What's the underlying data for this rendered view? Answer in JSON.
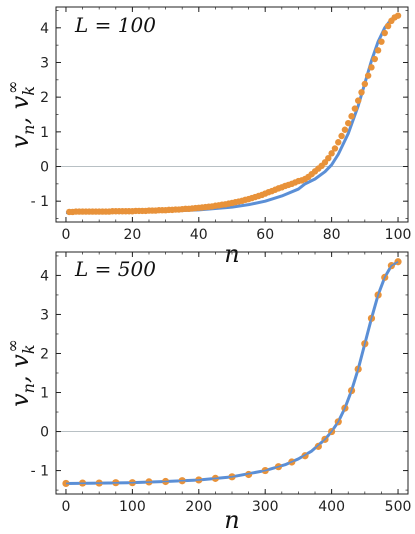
{
  "chart_data": [
    {
      "type": "line",
      "panel_label": "L = 100",
      "xlabel": "n",
      "ylabel": "v_n, v_k^∞",
      "xlim": [
        -3,
        103
      ],
      "ylim": [
        -1.6,
        4.6
      ],
      "xticks": [
        0,
        20,
        40,
        60,
        80,
        100
      ],
      "yticks": [
        -1,
        0,
        1,
        2,
        3,
        4
      ],
      "ytick_labels": [
        "- 1",
        "0",
        "1",
        "2",
        "3",
        "4"
      ],
      "reference_line_y": 0,
      "series": [
        {
          "style": "line",
          "color": "#5b8fd6",
          "x": [
            0,
            10,
            20,
            30,
            40,
            50,
            55,
            60,
            65,
            70,
            72,
            75,
            78,
            80,
            82,
            85,
            88,
            90,
            92,
            94,
            96,
            98,
            100
          ],
          "y": [
            -1.33,
            -1.32,
            -1.31,
            -1.29,
            -1.25,
            -1.17,
            -1.1,
            -1.0,
            -0.85,
            -0.65,
            -0.5,
            -0.36,
            -0.15,
            0.05,
            0.35,
            0.95,
            1.75,
            2.4,
            3.05,
            3.6,
            4.0,
            4.25,
            4.35
          ]
        },
        {
          "style": "markers",
          "color": "#e8923a",
          "x": [
            1,
            2,
            3,
            4,
            5,
            6,
            7,
            8,
            9,
            10,
            11,
            12,
            13,
            14,
            15,
            16,
            17,
            18,
            19,
            20,
            21,
            22,
            23,
            24,
            25,
            26,
            27,
            28,
            29,
            30,
            31,
            32,
            33,
            34,
            35,
            36,
            37,
            38,
            39,
            40,
            41,
            42,
            43,
            44,
            45,
            46,
            47,
            48,
            49,
            50,
            51,
            52,
            53,
            54,
            55,
            56,
            57,
            58,
            59,
            60,
            61,
            62,
            63,
            64,
            65,
            66,
            67,
            68,
            69,
            70,
            71,
            72,
            73,
            74,
            75,
            76,
            77,
            78,
            79,
            80,
            81,
            82,
            83,
            84,
            85,
            86,
            87,
            88,
            89,
            90,
            91,
            92,
            93,
            94,
            95,
            96,
            97,
            98,
            99,
            100
          ],
          "y": [
            -1.31,
            -1.31,
            -1.3,
            -1.3,
            -1.3,
            -1.3,
            -1.3,
            -1.3,
            -1.3,
            -1.3,
            -1.3,
            -1.3,
            -1.3,
            -1.29,
            -1.29,
            -1.29,
            -1.29,
            -1.29,
            -1.29,
            -1.29,
            -1.28,
            -1.28,
            -1.28,
            -1.28,
            -1.27,
            -1.27,
            -1.27,
            -1.26,
            -1.26,
            -1.26,
            -1.25,
            -1.25,
            -1.24,
            -1.24,
            -1.23,
            -1.22,
            -1.22,
            -1.21,
            -1.2,
            -1.19,
            -1.18,
            -1.17,
            -1.16,
            -1.15,
            -1.13,
            -1.12,
            -1.1,
            -1.09,
            -1.07,
            -1.05,
            -1.03,
            -1.01,
            -0.99,
            -0.96,
            -0.94,
            -0.91,
            -0.88,
            -0.85,
            -0.82,
            -0.78,
            -0.74,
            -0.71,
            -0.67,
            -0.63,
            -0.6,
            -0.56,
            -0.53,
            -0.5,
            -0.46,
            -0.42,
            -0.4,
            -0.36,
            -0.3,
            -0.22,
            -0.14,
            -0.06,
            0.02,
            0.12,
            0.24,
            0.38,
            0.52,
            0.7,
            0.88,
            1.06,
            1.25,
            1.45,
            1.67,
            1.9,
            2.14,
            2.38,
            2.62,
            2.86,
            3.1,
            3.35,
            3.6,
            3.85,
            4.05,
            4.2,
            4.3,
            4.35
          ]
        }
      ]
    },
    {
      "type": "line",
      "panel_label": "L = 500",
      "xlabel": "n",
      "ylabel": "v_n, v_k^∞",
      "xlim": [
        -15,
        515
      ],
      "ylim": [
        -1.6,
        4.6
      ],
      "xticks": [
        0,
        100,
        200,
        300,
        400,
        500
      ],
      "yticks": [
        -1,
        0,
        1,
        2,
        3,
        4
      ],
      "ytick_labels": [
        "- 1",
        "0",
        "1",
        "2",
        "3",
        "4"
      ],
      "reference_line_y": 0,
      "series": [
        {
          "style": "line",
          "color": "#5b8fd6",
          "x": [
            0,
            50,
            100,
            150,
            200,
            250,
            300,
            330,
            350,
            370,
            390,
            400,
            410,
            420,
            430,
            440,
            450,
            460,
            470,
            480,
            490,
            500
          ],
          "y": [
            -1.33,
            -1.32,
            -1.31,
            -1.28,
            -1.24,
            -1.16,
            -1.0,
            -0.85,
            -0.7,
            -0.5,
            -0.2,
            0.0,
            0.25,
            0.6,
            1.05,
            1.6,
            2.25,
            2.9,
            3.5,
            3.95,
            4.25,
            4.35
          ]
        },
        {
          "style": "markers",
          "color": "#e8923a",
          "x": [
            0,
            25,
            50,
            75,
            100,
            125,
            150,
            175,
            200,
            225,
            250,
            275,
            300,
            320,
            340,
            360,
            380,
            390,
            400,
            410,
            420,
            430,
            440,
            450,
            460,
            470,
            480,
            490,
            500
          ],
          "y": [
            -1.33,
            -1.32,
            -1.32,
            -1.31,
            -1.31,
            -1.29,
            -1.28,
            -1.26,
            -1.24,
            -1.2,
            -1.16,
            -1.1,
            -1.0,
            -0.9,
            -0.78,
            -0.62,
            -0.38,
            -0.2,
            0.0,
            0.25,
            0.6,
            1.05,
            1.6,
            2.25,
            2.9,
            3.5,
            3.95,
            4.25,
            4.35
          ]
        }
      ]
    }
  ]
}
